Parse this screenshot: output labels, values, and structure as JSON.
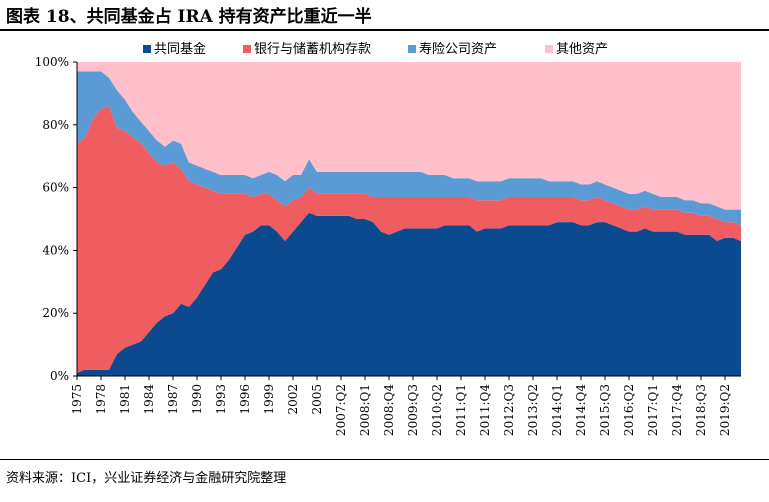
{
  "header": {
    "title": "图表 18、共同基金占 IRA 持有资产比重近一半"
  },
  "footer": {
    "source": "资料来源：ICI，兴业证券经济与金融研究院整理"
  },
  "colors": {
    "mutual_funds": "#0b4a8f",
    "bank_deposits": "#ef5d60",
    "annuities": "#5b9bd5",
    "other": "#ffc0cb"
  },
  "chart_data": {
    "type": "area",
    "stacked": true,
    "title": "",
    "xlabel": "",
    "ylabel": "",
    "ylim": [
      0,
      100
    ],
    "y_ticks": [
      "0%",
      "20%",
      "40%",
      "60%",
      "80%",
      "100%"
    ],
    "legend_position": "top",
    "x_tick_labels": [
      "1975",
      "1978",
      "1981",
      "1984",
      "1987",
      "1990",
      "1993",
      "1996",
      "1999",
      "2002",
      "2005",
      "2007:Q2",
      "2008:Q1",
      "2008:Q4",
      "2009:Q3",
      "2010:Q2",
      "2011:Q1",
      "2011:Q4",
      "2012:Q3",
      "2013:Q2",
      "2014:Q1",
      "2014:Q4",
      "2015:Q3",
      "2016:Q2",
      "2017:Q1",
      "2017:Q4",
      "2018:Q3",
      "2019:Q2"
    ],
    "x_tick_positions": [
      0,
      3,
      6,
      9,
      12,
      15,
      18,
      21,
      24,
      27,
      30,
      33,
      36,
      39,
      42,
      45,
      48,
      51,
      54,
      57,
      60,
      63,
      66,
      69,
      72,
      75,
      78,
      81
    ],
    "n_points": 84,
    "series": [
      {
        "name": "共同基金",
        "color_key": "mutual_funds",
        "values": [
          1,
          2,
          2,
          2,
          2,
          7,
          9,
          10,
          11,
          14,
          17,
          19,
          20,
          23,
          22,
          25,
          29,
          33,
          34,
          37,
          41,
          45,
          46,
          48,
          48,
          46,
          43,
          46,
          49,
          52,
          51,
          51,
          51,
          51,
          51,
          50,
          50,
          49,
          46,
          45,
          46,
          47,
          47,
          47,
          47,
          47,
          48,
          48,
          48,
          48,
          46,
          47,
          47,
          47,
          48,
          48,
          48,
          48,
          48,
          48,
          49,
          49,
          49,
          48,
          48,
          49,
          49,
          48,
          47,
          46,
          46,
          47,
          46,
          46,
          46,
          46,
          45,
          45,
          45,
          45,
          43,
          44,
          44,
          43
        ]
      },
      {
        "name": "银行与储蓄机构存款",
        "color_key": "bank_deposits",
        "values": [
          73,
          74,
          80,
          83,
          84,
          72,
          69,
          66,
          63,
          57,
          51,
          48,
          48,
          43,
          40,
          36,
          31,
          26,
          24,
          21,
          17,
          13,
          11,
          10,
          10,
          10,
          11,
          10,
          8,
          8,
          7,
          7,
          7,
          7,
          7,
          8,
          8,
          8,
          11,
          12,
          11,
          10,
          10,
          10,
          10,
          10,
          9,
          9,
          9,
          9,
          10,
          9,
          9,
          9,
          9,
          9,
          9,
          9,
          9,
          9,
          8,
          8,
          8,
          8,
          8,
          8,
          7,
          7,
          7,
          7,
          7,
          7,
          7,
          7,
          7,
          7,
          7,
          7,
          6,
          6,
          7,
          5,
          5,
          5
        ]
      },
      {
        "name": "寿险公司资产",
        "color_key": "annuities",
        "values": [
          23,
          21,
          15,
          12,
          9,
          12,
          10,
          8,
          7,
          7,
          7,
          6,
          7,
          8,
          6,
          6,
          6,
          6,
          6,
          6,
          6,
          6,
          6,
          6,
          7,
          8,
          8,
          8,
          7,
          9,
          7,
          7,
          7,
          7,
          7,
          7,
          7,
          8,
          8,
          8,
          8,
          8,
          8,
          8,
          7,
          7,
          7,
          6,
          6,
          6,
          6,
          6,
          6,
          6,
          6,
          6,
          6,
          6,
          6,
          5,
          5,
          5,
          5,
          5,
          5,
          5,
          5,
          5,
          5,
          5,
          5,
          5,
          5,
          4,
          4,
          4,
          4,
          4,
          4,
          4,
          4,
          4,
          4,
          5
        ]
      },
      {
        "name": "其他资产",
        "color_key": "other",
        "values": [
          3,
          3,
          3,
          3,
          5,
          9,
          12,
          16,
          19,
          22,
          25,
          27,
          25,
          26,
          32,
          33,
          34,
          35,
          36,
          36,
          36,
          36,
          37,
          36,
          35,
          36,
          38,
          36,
          36,
          31,
          35,
          35,
          35,
          35,
          35,
          35,
          35,
          35,
          35,
          35,
          35,
          35,
          35,
          35,
          36,
          36,
          36,
          37,
          37,
          37,
          38,
          38,
          38,
          38,
          37,
          37,
          37,
          37,
          37,
          38,
          38,
          38,
          38,
          39,
          39,
          38,
          39,
          40,
          41,
          42,
          42,
          41,
          42,
          43,
          43,
          43,
          44,
          44,
          45,
          45,
          46,
          47,
          47,
          47
        ]
      }
    ]
  }
}
